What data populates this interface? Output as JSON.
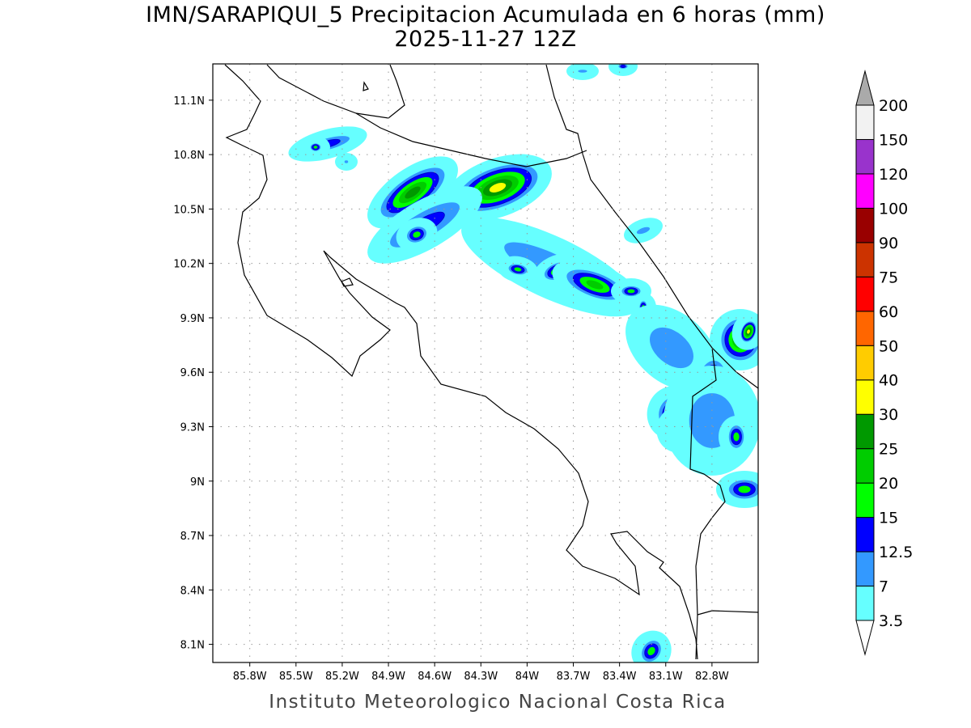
{
  "title": "IMN/SARAPIQUI_5 Precipitacion Acumulada en 6 horas (mm)",
  "subtitle": "2025-11-27 12Z",
  "footer": "Instituto Meteorologico Nacional Costa Rica",
  "map": {
    "region": "Costa Rica",
    "lon_range": [
      -86.04,
      -82.5
    ],
    "lat_range": [
      8.0,
      11.3
    ],
    "lon_ticks": [
      "85.8W",
      "85.5W",
      "85.2W",
      "84.9W",
      "84.6W",
      "84.3W",
      "84W",
      "83.7W",
      "83.4W",
      "83.1W",
      "82.8W"
    ],
    "lat_ticks": [
      "11.1N",
      "10.8N",
      "10.5N",
      "10.2N",
      "9.9N",
      "9.6N",
      "9.3N",
      "9N",
      "8.7N",
      "8.4N",
      "8.1N"
    ],
    "grid": "dotted"
  },
  "colorbar": {
    "labels": [
      "3.5",
      "7",
      "12.5",
      "15",
      "20",
      "25",
      "30",
      "40",
      "50",
      "60",
      "75",
      "90",
      "100",
      "120",
      "150",
      "200"
    ],
    "colors": [
      "#66ffff",
      "#3399ff",
      "#0000ff",
      "#00ff00",
      "#00cc00",
      "#009900",
      "#ffff00",
      "#ffcc00",
      "#ff6600",
      "#ff0000",
      "#cc3300",
      "#990000",
      "#ff00ff",
      "#9933cc",
      "#f2f2f2"
    ],
    "over_color": "#aaaaaa",
    "under_color": "#ffffff"
  }
}
